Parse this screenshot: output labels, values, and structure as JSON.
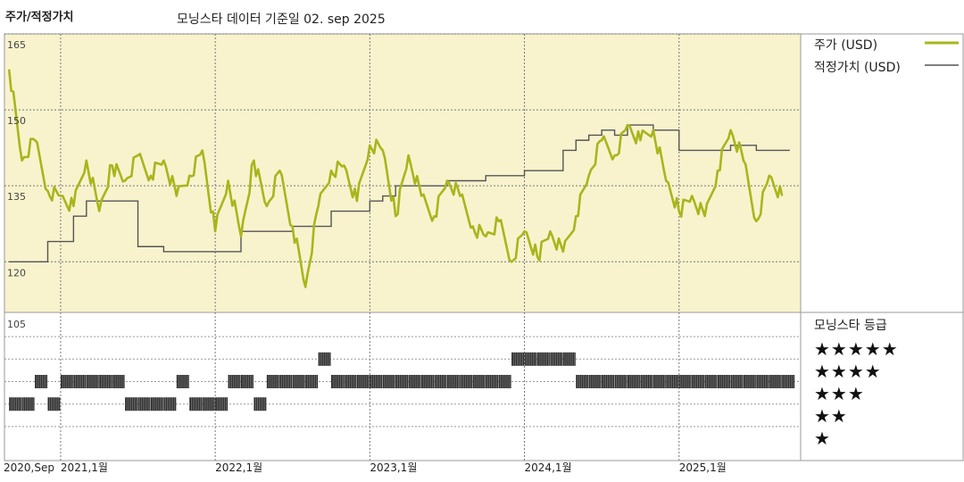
{
  "header": {
    "title": "주가/적정가치",
    "subtitle": "모닝스타 데이터 기준일 02. sep 2025"
  },
  "legend": {
    "price_label": "주가 (USD)",
    "fair_label": "적정가치 (USD)",
    "rating_title": "모닝스타 등급",
    "star_rows": [
      "★★★★★",
      "★★★★",
      "★★★",
      "★★",
      "★"
    ]
  },
  "colors": {
    "price": "#a9b51c",
    "fair": "#555555",
    "panel_bg": "#f8f3cd",
    "rating_bar": "#2a2a2a"
  },
  "chart_data": [
    {
      "type": "line",
      "title": "주가/적정가치",
      "x_range": [
        "2020-09",
        "2025-09"
      ],
      "ylim": [
        110,
        165
      ],
      "y_ticks": [
        165,
        150,
        135,
        120
      ],
      "x_ticks": [
        "2020,Sep",
        "2021,1월",
        "2022,1월",
        "2023,1월",
        "2024,1월",
        "2025,1월"
      ],
      "grid": true,
      "legend_position": "right",
      "series": [
        {
          "name": "주가 (USD)",
          "x": [
            "2020-09",
            "2020-10",
            "2020-11",
            "2020-12",
            "2021-01",
            "2021-02",
            "2021-03",
            "2021-04",
            "2021-05",
            "2021-06",
            "2021-07",
            "2021-08",
            "2021-09",
            "2021-10",
            "2021-11",
            "2021-12",
            "2022-01",
            "2022-02",
            "2022-03",
            "2022-04",
            "2022-05",
            "2022-06",
            "2022-07",
            "2022-08",
            "2022-09",
            "2022-10",
            "2022-11",
            "2022-12",
            "2023-01",
            "2023-02",
            "2023-03",
            "2023-04",
            "2023-05",
            "2023-06",
            "2023-07",
            "2023-08",
            "2023-09",
            "2023-10",
            "2023-11",
            "2023-12",
            "2024-01",
            "2024-02",
            "2024-03",
            "2024-04",
            "2024-05",
            "2024-06",
            "2024-07",
            "2024-08",
            "2024-09",
            "2024-10",
            "2024-11",
            "2024-12",
            "2025-01",
            "2025-02",
            "2025-03",
            "2025-04",
            "2025-05",
            "2025-06",
            "2025-07",
            "2025-08",
            "2025-09"
          ],
          "values": [
            158,
            140,
            144,
            134,
            133,
            131,
            140,
            130,
            139,
            136,
            141,
            137,
            140,
            133,
            137,
            142,
            126,
            136,
            125,
            140,
            131,
            138,
            127,
            115,
            131,
            138,
            139,
            132,
            143,
            142,
            129,
            141,
            133,
            129,
            136,
            133,
            127,
            125,
            128,
            120,
            126,
            121,
            126,
            122,
            129,
            137,
            144,
            141,
            147,
            144,
            146,
            136,
            130,
            133,
            129,
            138,
            146,
            140,
            128,
            137,
            133
          ]
        },
        {
          "name": "적정가치 (USD)",
          "x": [
            "2020-09",
            "2020-10",
            "2020-12",
            "2021-01",
            "2021-02",
            "2021-03",
            "2021-06",
            "2021-07",
            "2021-09",
            "2021-12",
            "2022-01",
            "2022-03",
            "2022-05",
            "2022-06",
            "2022-07",
            "2022-09",
            "2022-10",
            "2022-11",
            "2023-01",
            "2023-02",
            "2023-03",
            "2023-04",
            "2023-06",
            "2023-07",
            "2023-08",
            "2023-10",
            "2023-12",
            "2024-01",
            "2024-02",
            "2024-03",
            "2024-04",
            "2024-05",
            "2024-06",
            "2024-07",
            "2024-08",
            "2024-09",
            "2024-10",
            "2024-11",
            "2024-12",
            "2025-01",
            "2025-02",
            "2025-03",
            "2025-04",
            "2025-05",
            "2025-06",
            "2025-07",
            "2025-09"
          ],
          "values": [
            120,
            120,
            124,
            124,
            129,
            132,
            132,
            123,
            122,
            122,
            122,
            126,
            126,
            126,
            127,
            127,
            130,
            130,
            132,
            133,
            135,
            135,
            135,
            136,
            136,
            137,
            137,
            138,
            138,
            138,
            142,
            144,
            145,
            146,
            145,
            147,
            147,
            146,
            146,
            142,
            142,
            142,
            142,
            143,
            143,
            142,
            142
          ]
        }
      ]
    },
    {
      "type": "bar",
      "title": "모닝스타 등급",
      "ylabel": "모닝스타 등급",
      "y_ticks": [
        105
      ],
      "categories": [
        "2020-09",
        "2020-10",
        "2020-11",
        "2020-12",
        "2021-01",
        "2021-02",
        "2021-03",
        "2021-04",
        "2021-05",
        "2021-06",
        "2021-07",
        "2021-08",
        "2021-09",
        "2021-10",
        "2021-11",
        "2021-12",
        "2022-01",
        "2022-02",
        "2022-03",
        "2022-04",
        "2022-05",
        "2022-06",
        "2022-07",
        "2022-08",
        "2022-09",
        "2022-10",
        "2022-11",
        "2022-12",
        "2023-01",
        "2023-02",
        "2023-03",
        "2023-04",
        "2023-05",
        "2023-06",
        "2023-07",
        "2023-08",
        "2023-09",
        "2023-10",
        "2023-11",
        "2023-12",
        "2024-01",
        "2024-02",
        "2024-03",
        "2024-04",
        "2024-05",
        "2024-06",
        "2024-07",
        "2024-08",
        "2024-09",
        "2024-10",
        "2024-11",
        "2024-12",
        "2025-01",
        "2025-02",
        "2025-03",
        "2025-04",
        "2025-05",
        "2025-06",
        "2025-07",
        "2025-08",
        "2025-09"
      ],
      "stars": [
        2,
        2,
        3,
        2,
        3,
        3,
        3,
        3,
        3,
        2,
        2,
        2,
        2,
        3,
        2,
        2,
        2,
        3,
        3,
        2,
        3,
        3,
        3,
        3,
        4,
        3,
        3,
        3,
        3,
        3,
        3,
        3,
        3,
        3,
        3,
        3,
        3,
        3,
        3,
        4,
        4,
        4,
        4,
        4,
        3,
        3,
        3,
        3,
        3,
        3,
        3,
        3,
        3,
        3,
        3,
        3,
        3,
        3,
        3,
        3,
        3
      ]
    }
  ]
}
